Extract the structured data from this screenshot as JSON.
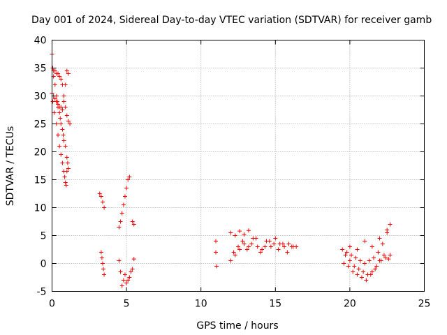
{
  "chart_data": {
    "type": "scatter",
    "title": "Day 001 of 2024, Sidereal Day-to-day VTEC variation (SDTVAR) for receiver gamb",
    "xlabel": "GPS time / hours",
    "ylabel": "SDTVAR / TECUs",
    "xlim": [
      0,
      25
    ],
    "ylim": [
      -5,
      40
    ],
    "xticks": [
      "0",
      "5",
      "10",
      "15",
      "20",
      "25"
    ],
    "yticks": [
      "-5",
      "0",
      "5",
      "10",
      "15",
      "20",
      "25",
      "30",
      "35",
      "40"
    ],
    "grid": true,
    "marker": "+",
    "color": "#ff0000",
    "series": [
      {
        "name": "SDTVAR",
        "x": [
          0.0,
          0.05,
          0.1,
          0.2,
          0.3,
          0.4,
          0.5,
          0.6,
          0.7,
          0.8,
          0.9,
          1.0,
          1.1,
          1.2,
          0.0,
          0.1,
          0.2,
          0.3,
          0.4,
          0.5,
          0.6,
          0.7,
          0.8,
          0.9,
          1.0,
          1.1,
          0.05,
          0.15,
          0.3,
          0.4,
          0.5,
          0.6,
          0.7,
          0.8,
          0.85,
          0.9,
          0.95,
          1.0,
          0.1,
          0.2,
          0.3,
          0.35,
          0.4,
          0.5,
          0.55,
          0.6,
          0.7,
          0.75,
          0.8,
          0.9,
          1.0,
          1.05,
          1.1,
          3.2,
          3.3,
          3.4,
          3.5,
          3.3,
          3.35,
          3.4,
          3.45,
          3.5,
          4.5,
          4.6,
          4.7,
          4.8,
          4.9,
          5.0,
          5.1,
          5.2,
          5.4,
          5.5,
          4.5,
          4.6,
          4.8,
          5.0,
          5.2,
          5.4,
          5.5,
          4.7,
          4.9,
          5.1,
          5.3,
          11.0,
          11.0,
          11.05,
          12.0,
          12.3,
          12.6,
          12.9,
          13.2,
          12.0,
          12.3,
          12.6,
          12.9,
          13.2,
          13.5,
          13.8,
          14.1,
          14.4,
          14.7,
          15.0,
          15.3,
          15.6,
          15.9,
          16.2,
          16.4,
          12.2,
          12.5,
          12.8,
          13.1,
          13.4,
          13.7,
          14.0,
          14.3,
          14.6,
          14.9,
          15.2,
          15.5,
          15.8,
          16.1,
          19.5,
          19.8,
          20.1,
          20.4,
          20.7,
          21.0,
          21.3,
          21.6,
          21.9,
          22.2,
          22.5,
          22.7,
          19.6,
          19.9,
          20.2,
          20.5,
          20.8,
          21.1,
          21.4,
          21.7,
          22.0,
          22.3,
          22.6,
          19.7,
          20.0,
          20.3,
          20.6,
          20.9,
          21.2,
          21.5,
          21.8,
          22.1,
          22.4,
          22.7,
          20.0,
          20.5,
          21.0,
          21.5,
          22.0,
          22.5
        ],
        "y": [
          37.5,
          35.0,
          34.5,
          34.5,
          34.0,
          34.0,
          33.5,
          33.0,
          32.0,
          30.0,
          28.0,
          26.5,
          25.5,
          25.0,
          30.5,
          30.0,
          29.5,
          29.0,
          28.5,
          28.0,
          28.0,
          27.5,
          29.0,
          32.0,
          34.5,
          34.0,
          29.0,
          27.0,
          25.0,
          23.0,
          21.0,
          19.5,
          18.0,
          16.5,
          15.5,
          14.5,
          14.0,
          16.5,
          33.5,
          32.0,
          30.0,
          29.0,
          28.0,
          27.0,
          26.0,
          25.0,
          24.0,
          23.0,
          22.0,
          21.0,
          19.0,
          18.0,
          17.0,
          12.5,
          12.0,
          11.0,
          10.0,
          2.0,
          1.0,
          0.0,
          -1.0,
          -2.0,
          6.5,
          7.5,
          9.0,
          10.5,
          12.0,
          13.5,
          15.0,
          15.5,
          7.5,
          7.0,
          0.5,
          -1.5,
          -3.0,
          -3.5,
          -2.5,
          -1.0,
          0.8,
          -4.0,
          -2.0,
          -3.0,
          -1.5,
          4.0,
          2.0,
          -0.5,
          5.5,
          5.0,
          5.8,
          5.2,
          5.9,
          0.5,
          1.5,
          2.5,
          3.5,
          3.0,
          4.5,
          3.0,
          2.5,
          4.0,
          3.0,
          4.5,
          3.5,
          3.0,
          3.5,
          3.0,
          3.0,
          2.0,
          3.0,
          4.0,
          2.5,
          3.5,
          4.5,
          2.0,
          3.0,
          4.0,
          3.5,
          2.5,
          3.5,
          2.0,
          3.0,
          2.5,
          2.0,
          1.5,
          1.0,
          0.5,
          0.0,
          0.5,
          1.0,
          2.0,
          3.5,
          5.5,
          7.0,
          0.0,
          -0.5,
          -1.5,
          -2.0,
          -2.5,
          -3.0,
          -2.0,
          -1.0,
          0.5,
          1.5,
          0.8,
          1.5,
          0.5,
          -0.5,
          -1.0,
          -1.5,
          -2.0,
          -1.5,
          -0.5,
          0.5,
          1.0,
          1.5,
          3.0,
          2.5,
          4.0,
          3.0,
          4.5,
          6.0
        ]
      }
    ]
  }
}
